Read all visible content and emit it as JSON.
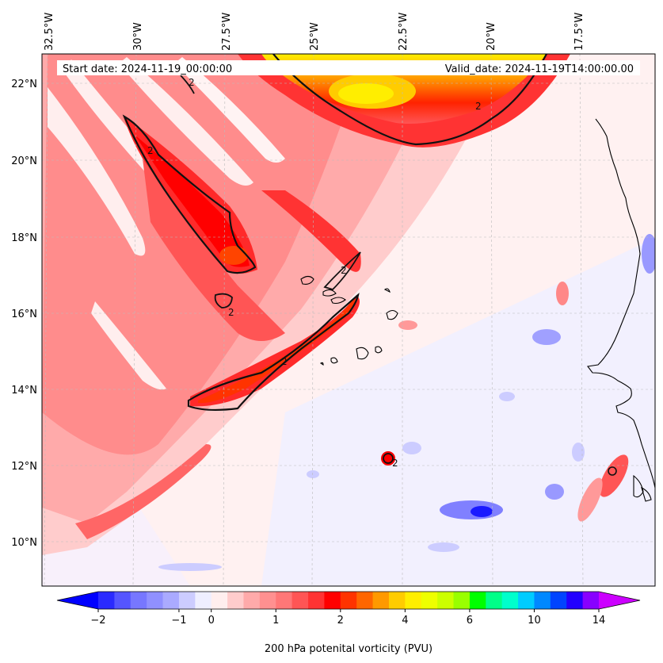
{
  "header": {
    "start_date": "Start date: 2024-11-19_00:00:00",
    "valid_date": "Valid_date: 2024-11-19T14:00:00.00"
  },
  "axes": {
    "lon_labels": [
      "32.5°W",
      "30°W",
      "27.5°W",
      "25°W",
      "22.5°W",
      "20°W",
      "17.5°W"
    ],
    "lat_labels": [
      "22°N",
      "20°N",
      "18°N",
      "16°N",
      "14°N",
      "12°N",
      "10°N"
    ]
  },
  "colorbar": {
    "label": "200 hPa potenital vorticity (PVU)",
    "tick_labels": [
      "−2",
      "−1",
      "0",
      "1",
      "2",
      "4",
      "6",
      "10",
      "14"
    ],
    "colors": [
      "#0000ff",
      "#2a2aff",
      "#5555ff",
      "#7777ff",
      "#9090ff",
      "#aaaaff",
      "#ccccff",
      "#eeeeff",
      "#ffeeee",
      "#ffcccc",
      "#ffaaaa",
      "#ff9090",
      "#ff7777",
      "#ff5555",
      "#ff3333",
      "#ff0000",
      "#ff3300",
      "#ff6600",
      "#ff9900",
      "#ffcc00",
      "#ffee00",
      "#eeff00",
      "#ccff00",
      "#99ff00",
      "#00ff00",
      "#00ff88",
      "#00ffcc",
      "#00ccff",
      "#0088ff",
      "#0044ff",
      "#2200ff",
      "#8800ff",
      "#cc00ff"
    ],
    "contour_label": "2"
  },
  "map": {
    "background": "#fff1f1",
    "contour_color": "#111111",
    "coast_color": "#000000"
  }
}
